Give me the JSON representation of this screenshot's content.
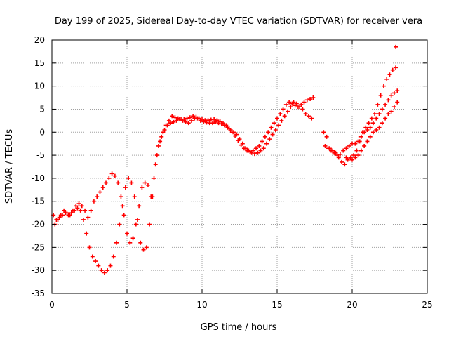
{
  "chart_data": {
    "type": "scatter",
    "title": "Day 199 of 2025, Sidereal Day-to-day VTEC variation (SDTVAR) for receiver vera",
    "xlabel": "GPS time / hours",
    "ylabel": "SDTVAR / TECUs",
    "xlim": [
      0,
      25
    ],
    "ylim": [
      -35,
      20
    ],
    "xticks": [
      0,
      5,
      10,
      15,
      20,
      25
    ],
    "yticks": [
      -35,
      -30,
      -25,
      -20,
      -15,
      -10,
      -5,
      0,
      5,
      10,
      15,
      20
    ],
    "grid": true,
    "legend": "none",
    "marker": "plus",
    "color": "#ff0000",
    "series": [
      {
        "x": [
          0.1,
          0.3,
          0.5,
          0.7,
          0.9,
          1.1,
          1.3,
          1.5,
          1.7,
          1.9,
          2.1,
          2.3,
          2.5,
          2.7,
          2.9,
          3.1,
          3.3,
          3.5,
          3.7,
          3.9,
          4.1,
          4.3,
          4.5,
          4.7,
          4.9,
          5.1,
          5.3,
          5.5,
          5.7,
          5.9,
          6.1,
          6.3,
          6.5,
          6.7,
          6.9,
          7.1,
          7.3,
          7.5,
          7.7,
          7.9,
          8.1,
          8.3,
          8.5,
          8.7,
          8.9,
          9.1,
          9.3,
          9.5,
          9.7,
          9.9,
          10.1,
          10.3,
          10.5,
          10.7,
          10.9,
          11.1,
          11.3,
          11.5,
          11.7,
          11.9,
          12.1,
          12.3,
          12.5,
          12.7,
          12.9,
          13.1,
          13.3,
          13.5,
          13.7,
          13.9,
          14.1,
          14.3,
          14.5,
          14.7,
          14.9,
          15.1,
          15.3,
          15.5,
          15.7,
          15.9,
          16.1,
          16.3,
          16.5,
          16.7,
          16.9,
          17.1,
          17.3
        ],
        "y": [
          -18,
          -19,
          -18.5,
          -18,
          -17.5,
          -18,
          -17.5,
          -17,
          -16.5,
          -17,
          -19,
          -22,
          -25,
          -27,
          -28,
          -29,
          -30,
          -30.5,
          -30,
          -29,
          -27,
          -24,
          -20,
          -16,
          -12,
          -10,
          -11,
          -14,
          -19,
          -24,
          -25.5,
          -25,
          -20,
          -14,
          -7,
          -3,
          -1,
          0.5,
          1.5,
          2,
          2.2,
          2.5,
          2.8,
          2.5,
          2.2,
          2.0,
          2.5,
          3.0,
          3.0,
          2.5,
          2.3,
          2.1,
          2.0,
          2.0,
          2.2,
          2.0,
          1.8,
          1.5,
          1.0,
          0.5,
          0,
          -0.5,
          -1.5,
          -2.5,
          -3.5,
          -4.0,
          -4.5,
          -4.7,
          -4.5,
          -4.0,
          -3.5,
          -2.5,
          -1.5,
          -0.5,
          0.5,
          1.5,
          2.5,
          3.5,
          4.5,
          5.5,
          6.5,
          6.2,
          5.5,
          5.0,
          4.0,
          3.5,
          3.0
        ]
      },
      {
        "x": [
          0.2,
          0.4,
          0.6,
          0.8,
          1.0,
          1.2,
          1.4,
          1.6,
          1.8,
          2.0,
          2.2,
          2.4,
          2.6,
          2.8,
          3.0,
          3.2,
          3.4,
          3.6,
          3.8,
          4.0,
          4.2,
          4.4,
          4.6,
          4.8,
          5.0,
          5.2,
          5.4,
          5.6,
          5.8,
          6.0,
          6.2,
          6.4,
          6.6,
          6.8,
          7.0,
          7.2,
          7.4,
          7.6,
          7.8,
          8.0,
          8.2,
          8.4,
          8.6,
          8.8,
          9.0,
          9.2,
          9.4,
          9.6,
          9.8,
          10.0,
          10.2,
          10.4,
          10.6,
          10.8,
          11.0,
          11.2,
          11.4,
          11.6,
          11.8,
          12.0,
          12.2,
          12.4,
          12.6,
          12.8,
          13.0,
          13.2,
          13.4,
          13.6,
          13.8,
          14.0,
          14.2,
          14.4,
          14.6,
          14.8,
          15.0,
          15.2,
          15.4,
          15.6,
          15.8,
          16.0,
          16.2,
          16.4,
          16.6,
          16.8,
          17.0,
          17.2,
          17.4
        ],
        "y": [
          -20,
          -19,
          -18,
          -17,
          -17.5,
          -18,
          -17,
          -16,
          -15.5,
          -16,
          -17,
          -18.5,
          -17,
          -15,
          -14,
          -13,
          -12,
          -11,
          -10,
          -9,
          -9.5,
          -11,
          -14,
          -18,
          -22,
          -24,
          -23,
          -20,
          -16,
          -12,
          -11,
          -11.5,
          -14,
          -10,
          -5,
          -2,
          0,
          1.5,
          2.5,
          3.5,
          3.2,
          3.0,
          2.8,
          2.8,
          3.0,
          3.2,
          3.5,
          3.3,
          3.0,
          2.8,
          2.6,
          2.6,
          2.7,
          2.8,
          2.6,
          2.3,
          2.0,
          1.5,
          0.8,
          0,
          -0.8,
          -1.8,
          -2.8,
          -3.5,
          -4.0,
          -4.2,
          -4.0,
          -3.5,
          -3.0,
          -2.0,
          -1.0,
          0,
          1.0,
          2.0,
          3.0,
          4.0,
          5.0,
          6.0,
          6.5,
          6.2,
          5.8,
          5.5,
          6.0,
          6.5,
          7.0,
          7.2,
          7.5
        ]
      },
      {
        "x": [
          18.1,
          18.3,
          18.5,
          18.7,
          18.9,
          19.1,
          19.3,
          19.5,
          19.7,
          19.9,
          20.1,
          20.3,
          20.5,
          20.7,
          20.9,
          21.1,
          21.3,
          21.5,
          21.7,
          21.9,
          22.1,
          22.3,
          22.5,
          22.7,
          22.9
        ],
        "y": [
          0,
          -1,
          -3.5,
          -4,
          -4.5,
          -5.5,
          -6.5,
          -7,
          -6,
          -5.5,
          -5,
          -4,
          -2,
          0,
          1.0,
          2.0,
          3.0,
          4.0,
          6.0,
          8.0,
          10.0,
          11.5,
          12.5,
          13.5,
          14.0
        ]
      },
      {
        "x": [
          18.2,
          18.4,
          18.6,
          18.8,
          19.0,
          19.2,
          19.4,
          19.6,
          19.8,
          20.0,
          20.2,
          20.4,
          20.6,
          20.8,
          21.0,
          21.2,
          21.4,
          21.6,
          21.8,
          22.0,
          22.2,
          22.4,
          22.6,
          22.8,
          23.0
        ],
        "y": [
          -3.0,
          -3.5,
          -4.0,
          -4.5,
          -5.0,
          -4.8,
          -4.0,
          -3.5,
          -3.0,
          -2.5,
          -2.5,
          -2.0,
          -1.0,
          0.0,
          0.5,
          1.0,
          2.0,
          3.0,
          4.0,
          5.0,
          6.0,
          7.0,
          8.0,
          8.5,
          9.0
        ]
      },
      {
        "x": [
          19.6,
          19.8,
          20.0,
          20.2,
          20.4,
          20.6,
          20.8,
          21.0,
          21.2,
          21.4,
          21.6,
          21.8,
          22.0,
          22.2,
          22.4,
          22.6,
          22.8,
          23.0
        ],
        "y": [
          -5.5,
          -5.8,
          -6.0,
          -5.5,
          -5.0,
          -4.0,
          -3.0,
          -2.0,
          -1.0,
          0.0,
          0.5,
          1.0,
          2.0,
          3.0,
          4.0,
          4.5,
          5.5,
          6.5
        ]
      },
      {
        "x": [
          22.9
        ],
        "y": [
          18.5
        ]
      }
    ]
  }
}
